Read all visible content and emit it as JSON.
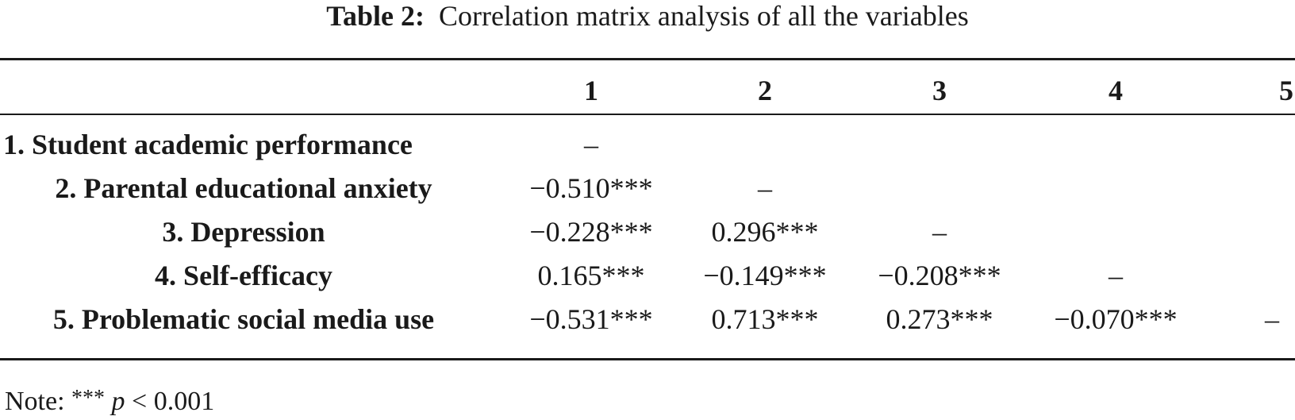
{
  "caption": {
    "label": "Table 2:",
    "text": "Correlation matrix analysis of all the variables"
  },
  "columns": [
    "1",
    "2",
    "3",
    "4",
    "5"
  ],
  "rows": [
    {
      "label": "1. Student academic performance",
      "values": [
        "–",
        "",
        "",
        "",
        ""
      ]
    },
    {
      "label": "2. Parental educational anxiety",
      "values": [
        "−0.510***",
        "–",
        "",
        "",
        ""
      ]
    },
    {
      "label": "3. Depression",
      "values": [
        "−0.228***",
        "0.296***",
        "–",
        "",
        ""
      ]
    },
    {
      "label": "4. Self-efficacy",
      "values": [
        "0.165***",
        "−0.149***",
        "−0.208***",
        "–",
        ""
      ]
    },
    {
      "label": "5. Problematic social media use",
      "values": [
        "−0.531***",
        "0.713***",
        "0.273***",
        "−0.070***",
        "–"
      ]
    }
  ],
  "note": {
    "prefix": "Note: ",
    "stars": "***",
    "p": "p",
    "suffix": " < 0.001"
  }
}
